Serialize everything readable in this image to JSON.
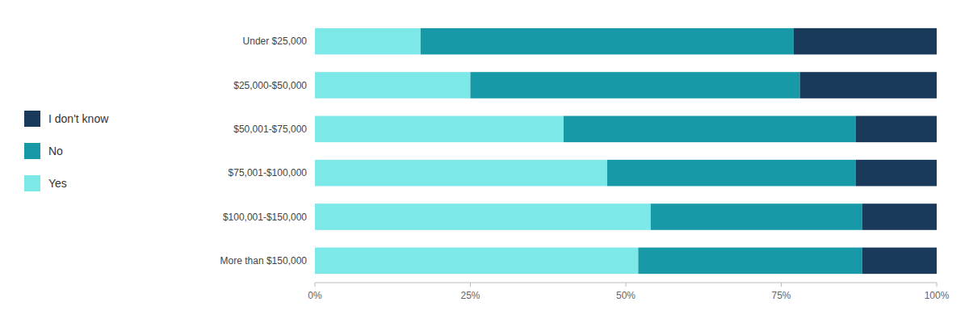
{
  "chart_data": {
    "type": "bar",
    "orientation": "horizontal",
    "stacked": true,
    "categories": [
      "Under $25,000",
      "$25,000-$50,000",
      "$50,001-$75,000",
      "$75,001-$100,000",
      "$100,001-$150,000",
      "More than $150,000"
    ],
    "series": [
      {
        "name": "Yes",
        "color": "#7DE8E8",
        "values": [
          17,
          25,
          40,
          47,
          54,
          52
        ]
      },
      {
        "name": "No",
        "color": "#1799A8",
        "values": [
          60,
          53,
          47,
          40,
          34,
          36
        ]
      },
      {
        "name": "I don't know",
        "color": "#1A3A5C",
        "values": [
          23,
          22,
          13,
          13,
          12,
          12
        ]
      }
    ],
    "xlim": [
      0,
      100
    ],
    "xticks": [
      {
        "value": 0,
        "label": "0%"
      },
      {
        "value": 25,
        "label": "25%"
      },
      {
        "value": 50,
        "label": "50%"
      },
      {
        "value": 75,
        "label": "75%"
      },
      {
        "value": 100,
        "label": "100%"
      }
    ],
    "grid": false,
    "legend": "left"
  }
}
